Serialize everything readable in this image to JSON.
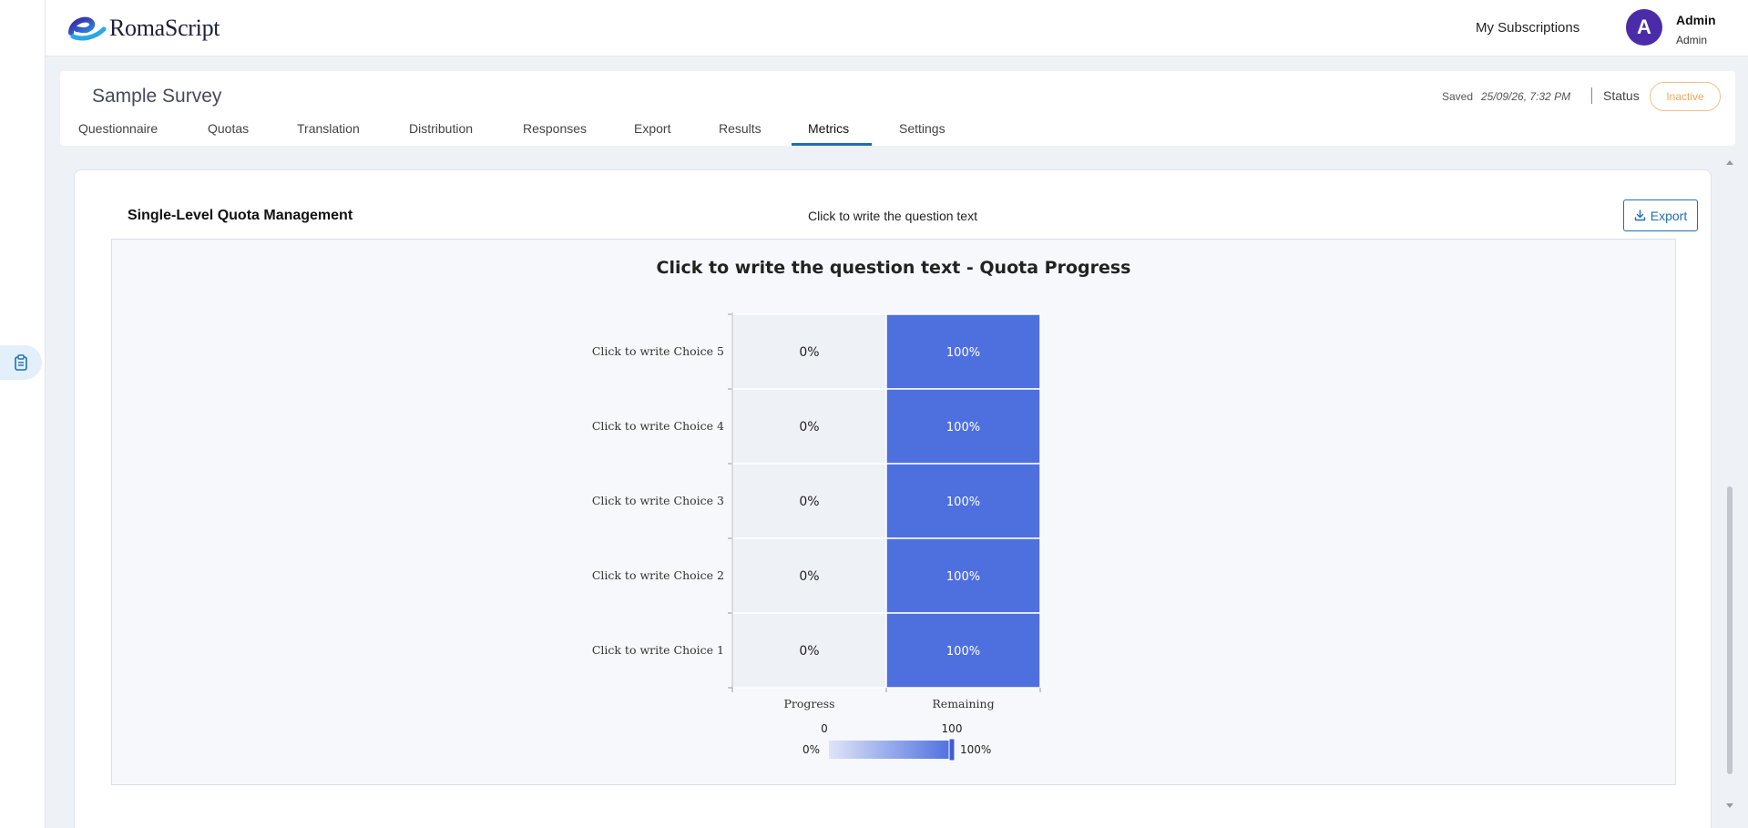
{
  "app": {
    "logo_text": "RomaScript"
  },
  "header": {
    "subscriptions_label": "My Subscriptions",
    "avatar_initial": "A",
    "user_name": "Admin",
    "user_role": "Admin"
  },
  "survey": {
    "title": "Sample Survey",
    "saved_label": "Saved",
    "saved_time": "25/09/26, 7:32 PM",
    "status_label": "Status",
    "status_value": "Inactive",
    "tabs": [
      {
        "label": "Questionnaire"
      },
      {
        "label": "Quotas"
      },
      {
        "label": "Translation"
      },
      {
        "label": "Distribution"
      },
      {
        "label": "Responses"
      },
      {
        "label": "Export"
      },
      {
        "label": "Results"
      },
      {
        "label": "Metrics",
        "active": true
      },
      {
        "label": "Settings"
      }
    ]
  },
  "panel": {
    "title": "Single-Level Quota Management",
    "question_text": "Click to write the question text",
    "export_label": "Export"
  },
  "chart_data": {
    "type": "heatmap",
    "title": "Click to write the question text - Quota Progress",
    "rows": [
      "Click to write Choice 5",
      "Click to write Choice 4",
      "Click to write Choice 3",
      "Click to write Choice 2",
      "Click to write Choice 1"
    ],
    "columns": [
      "Progress",
      "Remaining"
    ],
    "values": [
      [
        0,
        100
      ],
      [
        0,
        100
      ],
      [
        0,
        100
      ],
      [
        0,
        100
      ],
      [
        0,
        100
      ]
    ],
    "cell_labels": [
      [
        "0%",
        "100%"
      ],
      [
        "0%",
        "100%"
      ],
      [
        "0%",
        "100%"
      ],
      [
        "0%",
        "100%"
      ],
      [
        "0%",
        "100%"
      ]
    ],
    "color_scale": {
      "min": 0,
      "max": 100,
      "min_label": "0%",
      "max_label": "100%",
      "min_tick": "0",
      "max_tick": "100",
      "low_color": "#eef1f6",
      "high_color": "#4e70df"
    }
  },
  "colors": {
    "accent": "#1e6fb3",
    "avatar": "#4a2ca8",
    "status_inactive": "#f0a860",
    "heat_high": "#4e70df"
  }
}
